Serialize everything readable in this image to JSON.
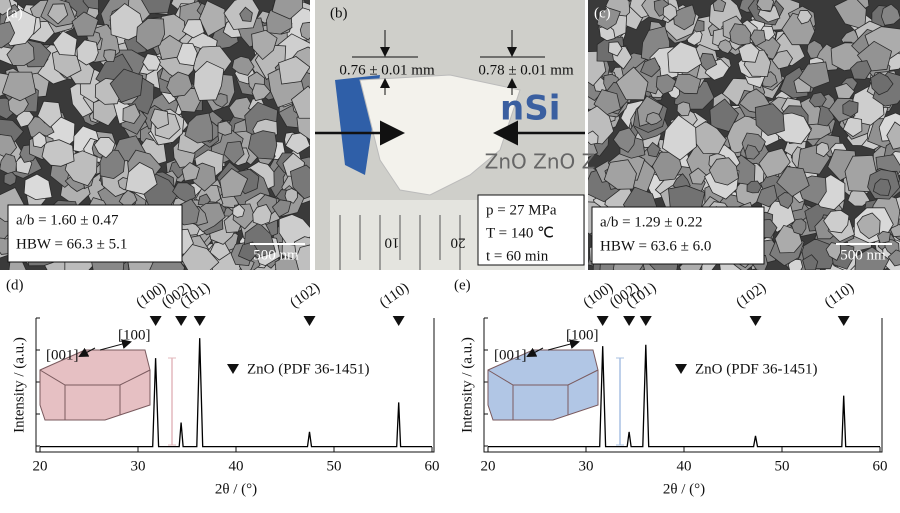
{
  "panels": [
    {
      "label": "(a)",
      "lines": [
        "a/b = 1.60 ± 0.47",
        "HBW = 66.3 ± 5.1"
      ],
      "scale": "500 nm"
    },
    {
      "label": "(b)",
      "dimensions": [
        "0.76 ± 0.01 mm",
        "0.78 ± 0.01 mm"
      ],
      "conditions": [
        "p = 27 MPa",
        "T = 140 ℃",
        "t = 60 min"
      ],
      "background_text": "ZnO ZnO Z",
      "ruler": [
        "10",
        "20"
      ]
    },
    {
      "label": "(c)",
      "lines": [
        "a/b = 1.29 ± 0.22",
        "HBW = 63.6 ± 6.0"
      ],
      "scale": "500 nm"
    }
  ],
  "chart_data": [
    {
      "type": "line",
      "panel_label": "(d)",
      "xlabel": "2θ / (°)",
      "ylabel": "Intensity / (a.u.)",
      "xlim": [
        20,
        60
      ],
      "xticks": [
        20,
        30,
        40,
        50,
        60
      ],
      "ylim": [
        0,
        100
      ],
      "x": [
        20,
        31.5,
        31.8,
        32.1,
        34.2,
        34.4,
        34.6,
        36.0,
        36.3,
        36.6,
        47.3,
        47.5,
        47.7,
        56.4,
        56.6,
        56.8,
        60
      ],
      "series": [
        {
          "name": "ZnO (PDF 36-1451)",
          "color": "#000000",
          "values": [
            4,
            4,
            70,
            4,
            4,
            22,
            4,
            4,
            85,
            4,
            4,
            15,
            4,
            4,
            37,
            4,
            4
          ]
        }
      ],
      "peak_markers": [
        {
          "label": "(100)",
          "x": 31.8
        },
        {
          "label": "(002)",
          "x": 34.4
        },
        {
          "label": "(101)",
          "x": 36.3
        },
        {
          "label": "(102)",
          "x": 47.5
        },
        {
          "label": "(110)",
          "x": 56.6
        }
      ],
      "inset_labels": [
        "[001]",
        "[100]"
      ],
      "inset_color": "#e3b9bd"
    },
    {
      "type": "line",
      "panel_label": "(e)",
      "xlabel": "2θ / (°)",
      "ylabel": "Intensity / (a.u.)",
      "xlim": [
        20,
        60
      ],
      "xticks": [
        20,
        30,
        40,
        50,
        60
      ],
      "ylim": [
        0,
        100
      ],
      "x": [
        20,
        31.4,
        31.7,
        32.0,
        34.2,
        34.4,
        34.6,
        35.8,
        36.1,
        36.4,
        47.1,
        47.3,
        47.5,
        56.1,
        56.3,
        56.5,
        60
      ],
      "series": [
        {
          "name": "ZnO (PDF 36-1451)",
          "color": "#000000",
          "values": [
            4,
            4,
            79,
            4,
            4,
            15,
            4,
            4,
            80,
            4,
            4,
            12,
            4,
            4,
            42,
            4,
            4
          ]
        }
      ],
      "peak_markers": [
        {
          "label": "(100)",
          "x": 31.7
        },
        {
          "label": "(002)",
          "x": 34.4
        },
        {
          "label": "(101)",
          "x": 36.1
        },
        {
          "label": "(102)",
          "x": 47.3
        },
        {
          "label": "(110)",
          "x": 56.3
        }
      ],
      "inset_labels": [
        "[001]",
        "[100]"
      ],
      "inset_color": "#a9c0e2"
    }
  ]
}
